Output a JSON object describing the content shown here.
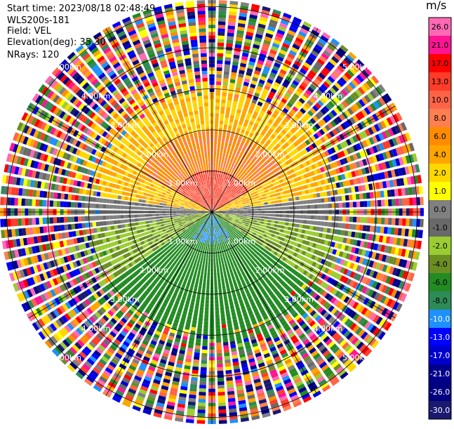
{
  "header": {
    "start_time": "Start time: 2023/08/18 02:48:49",
    "instrument": "WLS200s-181",
    "field": "Field: VEL",
    "elevation": "Elevation(deg): 35.30",
    "nrays": "NRays: 120"
  },
  "chart_data": {
    "type": "heatmap",
    "projection": "polar (PPI scan)",
    "field": "VEL",
    "units": "m/s",
    "nrays": 120,
    "range_ring_labels": [
      "1.00km",
      "2.00km",
      "3.00km",
      "4.00km",
      "5.00km"
    ],
    "range_rings_km": [
      1,
      2,
      3,
      4,
      5
    ],
    "max_range_km": 5.2,
    "spokes_deg": [
      0,
      30,
      60,
      90,
      120,
      150,
      180,
      210,
      240,
      270,
      300,
      330
    ],
    "colorbar": {
      "unit": "m/s",
      "tick_labels": [
        "26.0",
        "21.0",
        "17.0",
        "13.0",
        "10.0",
        "8.0",
        "6.0",
        "4.0",
        "2.0",
        "1.0",
        "0.0",
        "-1.0",
        "-2.0",
        "-4.0",
        "-6.0",
        "-8.0",
        "-10.0",
        "-13.0",
        "-17.0",
        "-21.0",
        "-26.0",
        "-30.0"
      ],
      "segment_colors": [
        "#ff69b4",
        "#ff1493",
        "#ff0000",
        "#ff3c28",
        "#ff6347",
        "#ff7f50",
        "#ff8c00",
        "#ffa500",
        "#ffd700",
        "#ffff00",
        "#808080",
        "#696969",
        "#9acd32",
        "#6b8e23",
        "#228b22",
        "#2e8b57",
        "#1e90ff",
        "#0000ff",
        "#0000cd",
        "#00008b",
        "#000080",
        "#191970"
      ]
    },
    "pattern": {
      "near_field_upper": "positive velocities (red/orange/yellow, ~2 to 17 m/s)",
      "near_field_lower": "negative velocities (green/blue, ~-2 to -10 m/s)",
      "horizon_band": "near-zero velocities (gray, ~0 m/s)",
      "far_field": "noise (mixed colors beyond ~3 km)"
    }
  }
}
